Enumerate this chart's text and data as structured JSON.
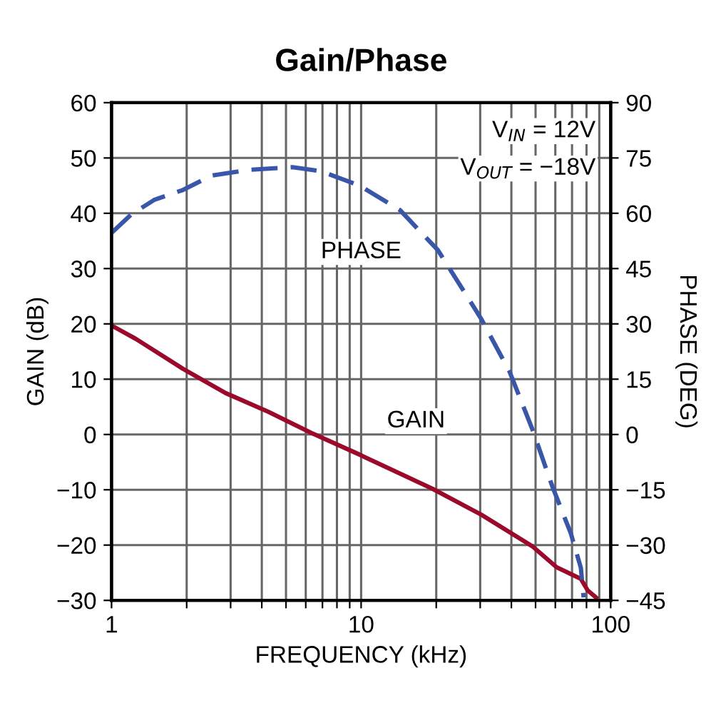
{
  "chart_data": {
    "type": "line",
    "title": "Gain/Phase",
    "xlabel": "FREQUENCY (kHz)",
    "ylabel": "GAIN (dB)",
    "y2label": "PHASE (DEG)",
    "log": "x",
    "grid": true,
    "legend": false,
    "marker": "none",
    "xlim": [
      1,
      100
    ],
    "xticks": [
      1,
      {
        "value": 2,
        "label": null
      },
      {
        "value": 3,
        "label": null
      },
      {
        "value": 4,
        "label": null
      },
      {
        "value": 5,
        "label": null
      },
      {
        "value": 6,
        "label": null
      },
      {
        "value": 7,
        "label": null
      },
      {
        "value": 8,
        "label": null
      },
      {
        "value": 9,
        "label": null
      },
      10,
      {
        "value": 20,
        "label": null
      },
      {
        "value": 30,
        "label": null
      },
      {
        "value": 40,
        "label": null
      },
      {
        "value": 50,
        "label": null
      },
      {
        "value": 60,
        "label": null
      },
      {
        "value": 70,
        "label": null
      },
      {
        "value": 80,
        "label": null
      },
      {
        "value": 90,
        "label": null
      },
      100
    ],
    "ylim": [
      -30,
      60
    ],
    "yticks": [
      -30,
      -20,
      -10,
      0,
      10,
      20,
      30,
      40,
      50,
      60
    ],
    "y2lim": [
      -45,
      90
    ],
    "y2ticks": [
      -45,
      -30,
      -15,
      0,
      15,
      30,
      45,
      60,
      75,
      90
    ],
    "series": [
      {
        "color": "#9b0a2a",
        "line_style": "solid",
        "x": [
          1.0,
          1.25,
          1.93,
          2.86,
          4.25,
          6.31,
          9.6,
          19.3,
          30.3,
          48.5,
          60.7,
          75.9,
          80.9,
          87.5
        ],
        "values": [
          19.7,
          17.3,
          11.9,
          7.5,
          4.1,
          0.3,
          -3.4,
          -9.8,
          -14.5,
          -20.2,
          -24.0,
          -26.1,
          -28.2,
          -29.5
        ]
      },
      {
        "color": "#3a56a8",
        "line_style": "dashed",
        "axis": "y2",
        "x": [
          1.0,
          1.2,
          1.48,
          1.93,
          2.51,
          3.58,
          5.32,
          6.92,
          9.87,
          14.3,
          20.3,
          30.2,
          39.3,
          48.5,
          58.3,
          69.2,
          75.9,
          77.9
        ],
        "values": [
          54.7,
          59.7,
          63.6,
          66.3,
          70.2,
          71.8,
          72.5,
          71.4,
          67.5,
          60.9,
          50.0,
          31.5,
          17.1,
          1.5,
          -14.0,
          -26.8,
          -36.1,
          -44.2
        ]
      }
    ],
    "annotations": [
      "PHASE",
      "GAIN",
      "V$_{IN}$ = 12V",
      "V$_{OUT}$ = −18V"
    ]
  }
}
